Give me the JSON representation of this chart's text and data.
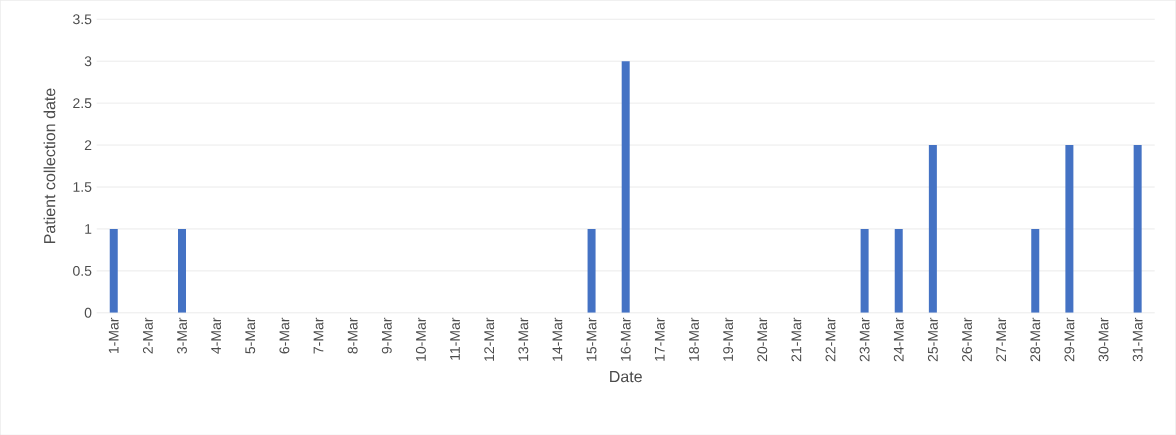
{
  "chart_data": {
    "type": "bar",
    "xlabel": "Date",
    "ylabel": "Patient collection date",
    "categories": [
      "1-Mar",
      "2-Mar",
      "3-Mar",
      "4-Mar",
      "5-Mar",
      "6-Mar",
      "7-Mar",
      "8-Mar",
      "9-Mar",
      "10-Mar",
      "11-Mar",
      "12-Mar",
      "13-Mar",
      "14-Mar",
      "15-Mar",
      "16-Mar",
      "17-Mar",
      "18-Mar",
      "19-Mar",
      "20-Mar",
      "21-Mar",
      "22-Mar",
      "23-Mar",
      "24-Mar",
      "25-Mar",
      "26-Mar",
      "27-Mar",
      "28-Mar",
      "29-Mar",
      "30-Mar",
      "31-Mar"
    ],
    "values": [
      1,
      0,
      1,
      0,
      0,
      0,
      0,
      0,
      0,
      0,
      0,
      0,
      0,
      0,
      1,
      3,
      0,
      0,
      0,
      0,
      0,
      0,
      1,
      1,
      2,
      0,
      0,
      1,
      2,
      0,
      2
    ],
    "color": "#4472c4",
    "ylim": [
      0,
      3.5
    ],
    "yticks": [
      0,
      0.5,
      1,
      1.5,
      2,
      2.5,
      3,
      3.5
    ],
    "grid": "y"
  }
}
